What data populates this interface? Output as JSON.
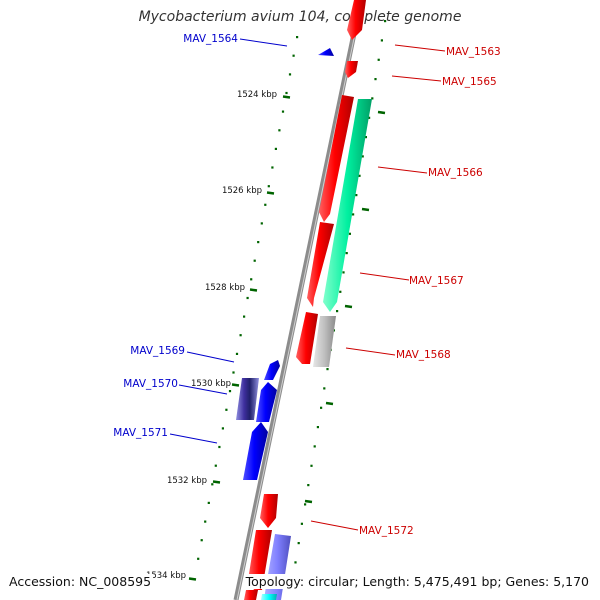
{
  "title": "Mycobacterium avium 104, complete genome",
  "accession": "Accession: NC_008595",
  "summary": "Topology: circular; Length: 5,475,491 bp; Genes: 5,170",
  "colors": {
    "backbone": "#8c8c8c",
    "forward_label": "#cc0000",
    "reverse_label": "#0000cc",
    "tick": "#006400"
  },
  "scale_labels": [
    "1524 kbp",
    "1526 kbp",
    "1528 kbp",
    "1530 kbp",
    "1532 kbp",
    "1534 kbp"
  ],
  "genes": [
    {
      "id": "MAV_1563",
      "color": "#ff0000"
    },
    {
      "id": "MAV_1564",
      "color": "#0000ff"
    },
    {
      "id": "MAV_1565",
      "color": "#ff0000"
    },
    {
      "id": "MAV_1566",
      "color": "#00ff99"
    },
    {
      "id": "MAV_1567",
      "color": "#ff0000"
    },
    {
      "id": "MAV_1568",
      "color": "#bfbfbf"
    },
    {
      "id": "MAV_1569",
      "color": "#0000ff"
    },
    {
      "id": "MAV_1570",
      "color": "#3f2f9f"
    },
    {
      "id": "MAV_1571",
      "color": "#0000ff"
    },
    {
      "id": "MAV_1572",
      "color": "#ff0000"
    }
  ],
  "unlabeled_features": [
    {
      "color": "#ff0000"
    },
    {
      "color": "#8080ff"
    },
    {
      "color": "#00ffff"
    },
    {
      "color": "#ff0000"
    }
  ]
}
